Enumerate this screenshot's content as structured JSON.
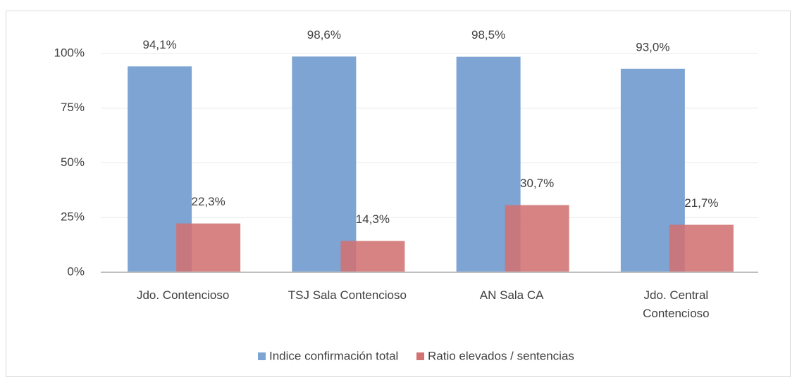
{
  "chart_data": {
    "type": "bar",
    "categories": [
      "Jdo. Contencioso",
      "TSJ Sala Contencioso",
      "AN Sala CA",
      "Jdo. Central\nContencioso"
    ],
    "series": [
      {
        "name": "Indice confirmación total",
        "color": "#7da4d3",
        "values": [
          94.1,
          98.6,
          98.5,
          93.0
        ],
        "value_labels": [
          "94,1%",
          "98,6%",
          "98,5%",
          "93,0%"
        ]
      },
      {
        "name": "Ratio elevados / sentencias",
        "color": "#d27272",
        "values": [
          22.3,
          14.3,
          30.7,
          21.7
        ],
        "value_labels": [
          "22,3%",
          "14,3%",
          "30,7%",
          "21,7%"
        ]
      }
    ],
    "ylim": [
      0,
      100
    ],
    "yticks": [
      {
        "value": 0,
        "label": "0%"
      },
      {
        "value": 25,
        "label": "25%"
      },
      {
        "value": 50,
        "label": "50%"
      },
      {
        "value": 75,
        "label": "75%"
      },
      {
        "value": 100,
        "label": "100%"
      }
    ],
    "grid": true,
    "legend": "bottom"
  }
}
